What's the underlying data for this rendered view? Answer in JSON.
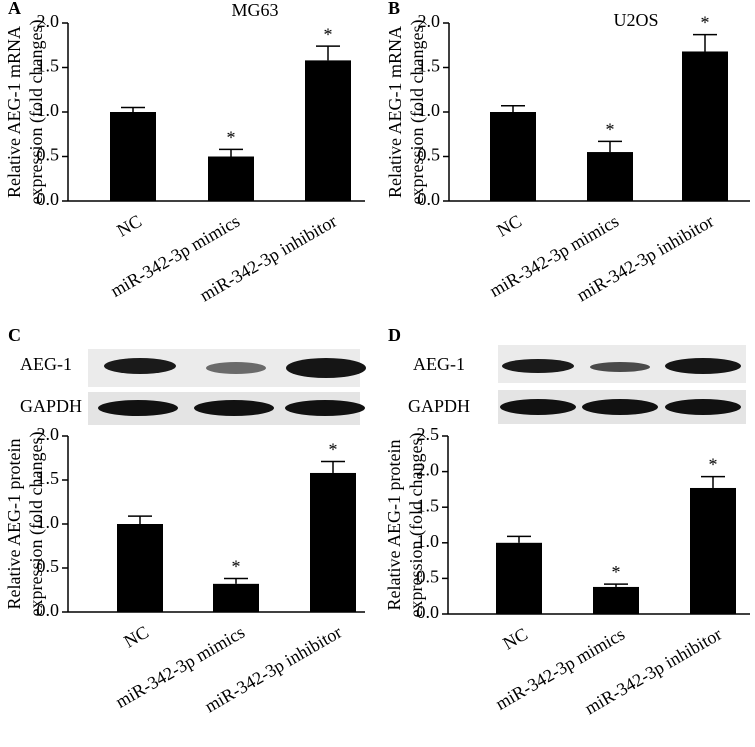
{
  "chart_data": [
    {
      "type": "bar",
      "panel": "A",
      "title": "MG63",
      "ylabel": [
        "Relative AEG-1 mRNA",
        "expression (fold changes)"
      ],
      "categories": [
        "NC",
        "miR-342-3p mimics",
        "miR-342-3p inhibitor"
      ],
      "values": [
        1.0,
        0.5,
        1.58
      ],
      "errors": [
        0.05,
        0.08,
        0.16
      ],
      "significance": [
        null,
        "*",
        "*"
      ],
      "color": "#000000",
      "ylim": [
        0,
        2.0
      ],
      "yticks": [
        {
          "value": 0,
          "label": "0.0"
        },
        0.5,
        {
          "value": 1,
          "label": "1.0"
        },
        1.5,
        {
          "value": 2,
          "label": "2.0"
        }
      ]
    },
    {
      "type": "bar",
      "panel": "B",
      "title": "U2OS",
      "ylabel": [
        "Relative AEG-1 mRNA",
        "expression (fold changes)"
      ],
      "categories": [
        "NC",
        "miR-342-3p mimics",
        "miR-342-3p inhibitor"
      ],
      "values": [
        1.0,
        0.55,
        1.68
      ],
      "errors": [
        0.07,
        0.12,
        0.19
      ],
      "significance": [
        null,
        "*",
        "*"
      ],
      "color": "#000000",
      "ylim": [
        0,
        2.0
      ],
      "yticks": [
        {
          "value": 0,
          "label": "0.0"
        },
        0.5,
        {
          "value": 1,
          "label": "1.0"
        },
        1.5,
        {
          "value": 2,
          "label": "2.0"
        }
      ]
    },
    {
      "type": "bar",
      "panel": "C",
      "blot_labels": [
        "AEG-1",
        "GAPDH"
      ],
      "ylabel": [
        "Relative AEG-1 protein",
        "expression (fold changes)"
      ],
      "categories": [
        "NC",
        "miR-342-3p mimics",
        "miR-342-3p inhibitor"
      ],
      "values": [
        1.0,
        0.32,
        1.58
      ],
      "errors": [
        0.09,
        0.06,
        0.13
      ],
      "significance": [
        null,
        "*",
        "*"
      ],
      "color": "#000000",
      "ylim": [
        0,
        2.0
      ],
      "yticks": [
        {
          "value": 0,
          "label": "0.0"
        },
        0.5,
        {
          "value": 1,
          "label": "1.0"
        },
        1.5,
        {
          "value": 2,
          "label": "2.0"
        }
      ]
    },
    {
      "type": "bar",
      "panel": "D",
      "blot_labels": [
        "AEG-1",
        "GAPDH"
      ],
      "ylabel": [
        "Relative AEG-1 protein",
        "expression (fold changes)"
      ],
      "categories": [
        "NC",
        "miR-342-3p mimics",
        "miR-342-3p inhibitor"
      ],
      "values": [
        1.0,
        0.38,
        1.77
      ],
      "errors": [
        0.09,
        0.04,
        0.16
      ],
      "significance": [
        null,
        "*",
        "*"
      ],
      "color": "#000000",
      "ylim": [
        0,
        2.5
      ],
      "yticks": [
        {
          "value": 0,
          "label": "0.0"
        },
        0.5,
        {
          "value": 1,
          "label": "1.0"
        },
        1.5,
        {
          "value": 2,
          "label": "2.0"
        },
        2.5
      ]
    }
  ]
}
